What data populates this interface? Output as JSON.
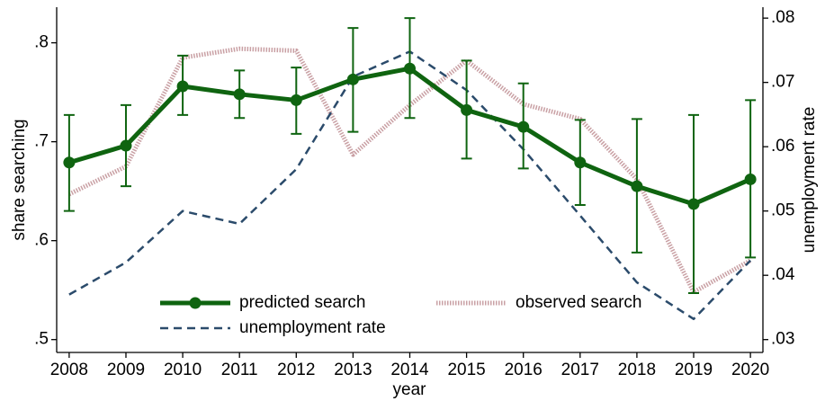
{
  "chart_data": {
    "type": "line",
    "x_label": "year",
    "y_label": "share searching",
    "y2_label": "unemployment rate",
    "x": [
      2008,
      2009,
      2010,
      2011,
      2012,
      2013,
      2014,
      2015,
      2016,
      2017,
      2018,
      2019,
      2020
    ],
    "xlim": [
      2007.78,
      2020.22
    ],
    "xticks": [
      2008,
      2009,
      2010,
      2011,
      2012,
      2013,
      2014,
      2015,
      2016,
      2017,
      2018,
      2019,
      2020
    ],
    "ylim": [
      0.487,
      0.836
    ],
    "yticks": [
      {
        "value": 0.5,
        "label": ".5"
      },
      {
        "value": 0.6,
        "label": ".6"
      },
      {
        "value": 0.7,
        "label": ".7"
      },
      {
        "value": 0.8,
        "label": ".8"
      }
    ],
    "y2lim": [
      0.028,
      0.0817
    ],
    "y2ticks": [
      {
        "value": 0.03,
        "label": ".03"
      },
      {
        "value": 0.04,
        "label": ".04"
      },
      {
        "value": 0.05,
        "label": ".05"
      },
      {
        "value": 0.06,
        "label": ".06"
      },
      {
        "value": 0.07,
        "label": ".07"
      },
      {
        "value": 0.08,
        "label": ".08"
      }
    ],
    "legend": "bottom",
    "series": [
      {
        "name": "predicted search",
        "color": "#0f6410",
        "style": "solid-markers",
        "values": [
          0.679,
          0.696,
          0.756,
          0.748,
          0.742,
          0.763,
          0.774,
          0.732,
          0.715,
          0.679,
          0.655,
          0.637,
          0.662
        ],
        "ci_high": [
          0.727,
          0.737,
          0.787,
          0.772,
          0.775,
          0.815,
          0.825,
          0.782,
          0.759,
          0.722,
          0.723,
          0.727,
          0.742
        ],
        "ci_low": [
          0.63,
          0.655,
          0.727,
          0.724,
          0.708,
          0.71,
          0.724,
          0.683,
          0.673,
          0.636,
          0.588,
          0.547,
          0.583
        ]
      },
      {
        "name": "observed search",
        "color": "#c9a0a4",
        "style": "dotted",
        "values": [
          0.647,
          0.675,
          0.785,
          0.794,
          0.792,
          0.687,
          0.737,
          0.782,
          0.738,
          0.723,
          0.662,
          0.548,
          0.58
        ]
      },
      {
        "name": "unemployment rate",
        "color": "#2b4b6b",
        "style": "dashed",
        "axis": "y2",
        "values": [
          0.037,
          0.042,
          0.05,
          0.048,
          0.0565,
          0.0709,
          0.0748,
          0.0688,
          0.0596,
          0.0493,
          0.0389,
          0.0332,
          0.0423
        ]
      }
    ]
  }
}
